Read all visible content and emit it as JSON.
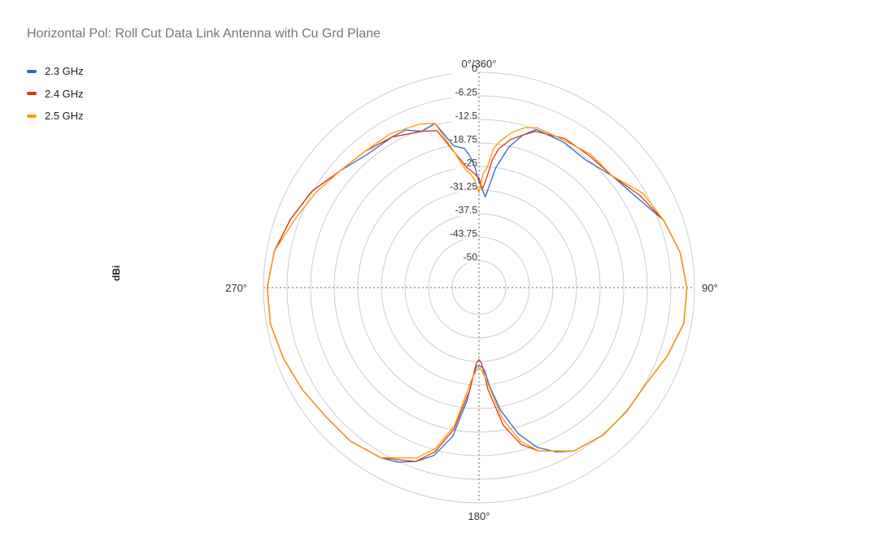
{
  "chart_data": {
    "type": "polar-line",
    "title": "Horizontal Pol: Roll Cut Data Link Antenna with Cu Grd Plane",
    "rlabel": "dBi",
    "r_ticks": [
      "0",
      "-6.25",
      "-12.5",
      "-18.75",
      "-25",
      "-31.25",
      "-37.5",
      "-43.75",
      "-50"
    ],
    "rlim": [
      -50,
      0
    ],
    "angle_labels": {
      "top": "0°/360°",
      "right": "90°",
      "bottom": "180°",
      "left": "270°"
    },
    "grid": true,
    "legend_position": "top-left",
    "series": [
      {
        "name": "2.3 GHz",
        "color": "#3366cc",
        "angles": [
          0,
          4,
          8,
          12,
          16,
          20,
          30,
          40,
          50,
          60,
          70,
          80,
          90,
          100,
          110,
          120,
          130,
          140,
          150,
          155,
          160,
          165,
          170,
          174,
          176,
          178,
          180,
          182,
          184,
          186,
          190,
          195,
          200,
          205,
          210,
          220,
          230,
          240,
          250,
          260,
          270,
          280,
          290,
          300,
          310,
          320,
          330,
          335,
          340,
          345,
          350,
          354,
          356,
          358,
          360
        ],
        "values": [
          -29,
          -33,
          -25,
          -19,
          -15,
          -12.5,
          -12.5,
          -13,
          -11,
          -9,
          -5,
          -3,
          -2,
          -2,
          -4,
          -6,
          -6,
          -6,
          -7,
          -9,
          -12,
          -17,
          -24,
          -31,
          -35,
          -36,
          -36.5,
          -36,
          -33,
          -27,
          -17,
          -11,
          -8,
          -6,
          -5,
          -4,
          -4,
          -3,
          -2,
          -1,
          -1,
          -2,
          -4,
          -6,
          -9,
          -11,
          -11,
          -11,
          -13,
          -12,
          -19,
          -20,
          -22,
          -25,
          -29
        ]
      },
      {
        "name": "2.4 GHz",
        "color": "#dc3912",
        "angles": [
          0,
          2,
          4,
          6,
          8,
          12,
          16,
          20,
          30,
          40,
          50,
          60,
          70,
          80,
          90,
          100,
          110,
          120,
          130,
          140,
          150,
          160,
          165,
          170,
          175,
          178,
          180,
          182,
          185,
          190,
          195,
          200,
          210,
          220,
          230,
          240,
          250,
          260,
          270,
          280,
          290,
          300,
          310,
          320,
          330,
          340,
          345,
          350,
          352,
          354,
          356,
          358,
          360
        ],
        "values": [
          -28,
          -31,
          -28,
          -23,
          -20,
          -17,
          -15,
          -13,
          -11.5,
          -11.5,
          -11,
          -8,
          -5,
          -3,
          -2,
          -2,
          -4,
          -6,
          -6,
          -6,
          -7,
          -11,
          -14,
          -20,
          -30,
          -37,
          -38,
          -37,
          -30,
          -19,
          -12,
          -8,
          -5,
          -4,
          -4,
          -3,
          -2,
          -1,
          -1,
          -2,
          -4,
          -6,
          -9,
          -10,
          -11,
          -13,
          -14,
          -21,
          -23,
          -25,
          -26,
          -27,
          -28
        ]
      },
      {
        "name": "2.5 GHz",
        "color": "#ff9900",
        "angles": [
          0,
          2,
          4,
          6,
          8,
          12,
          16,
          20,
          30,
          40,
          50,
          60,
          70,
          80,
          90,
          100,
          110,
          120,
          130,
          140,
          150,
          160,
          165,
          170,
          175,
          178,
          180,
          182,
          185,
          190,
          195,
          200,
          210,
          220,
          230,
          240,
          250,
          260,
          270,
          280,
          290,
          300,
          310,
          320,
          330,
          340,
          345,
          350,
          352,
          354,
          356,
          358,
          360
        ],
        "values": [
          -32,
          -27,
          -25,
          -20,
          -18,
          -15,
          -13,
          -12,
          -12,
          -11,
          -11,
          -7,
          -5,
          -3,
          -2,
          -2,
          -4,
          -6,
          -6,
          -6,
          -7,
          -11,
          -15,
          -22,
          -32,
          -35,
          -36,
          -35,
          -32,
          -20,
          -13,
          -9,
          -5,
          -4,
          -4,
          -3,
          -2,
          -1,
          -1,
          -2,
          -5,
          -7,
          -9,
          -10,
          -10,
          -11,
          -12,
          -21,
          -24,
          -26,
          -27,
          -29,
          -32
        ]
      }
    ]
  }
}
